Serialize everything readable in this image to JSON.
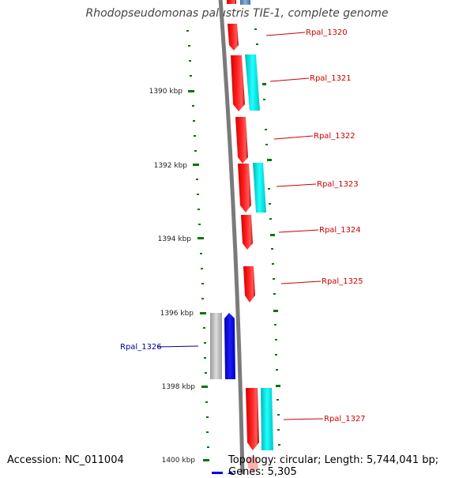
{
  "title": "Rhodopseudomonas palustris TIE-1, complete genome",
  "footer": {
    "accession": "Accession: NC_011004",
    "summary": "Topology: circular; Length: 5,744,041 bp; Genes: 5,305"
  },
  "axis_labels": [
    "1390 kbp",
    "1392 kbp",
    "1394 kbp",
    "1396 kbp",
    "1398 kbp",
    "1400 kbp"
  ],
  "genes": [
    {
      "name": "Rpal_1320",
      "strand": "+",
      "color": "#cc0000"
    },
    {
      "name": "Rpal_1321",
      "strand": "+",
      "color": "#cc0000"
    },
    {
      "name": "Rpal_1322",
      "strand": "+",
      "color": "#cc0000"
    },
    {
      "name": "Rpal_1323",
      "strand": "+",
      "color": "#cc0000"
    },
    {
      "name": "Rpal_1324",
      "strand": "+",
      "color": "#cc0000"
    },
    {
      "name": "Rpal_1325",
      "strand": "+",
      "color": "#cc0000"
    },
    {
      "name": "Rpal_1326",
      "strand": "-",
      "color": "#000099"
    },
    {
      "name": "Rpal_1327",
      "strand": "+",
      "color": "#cc0000"
    }
  ],
  "colors": {
    "forward_gene": "#ff0000",
    "forward_cds": "#00e5e5",
    "reverse_gene": "#0000ee",
    "reverse_cds": "#a8a8a8",
    "tick": "#007700",
    "backbone": "#7a7a7a"
  }
}
